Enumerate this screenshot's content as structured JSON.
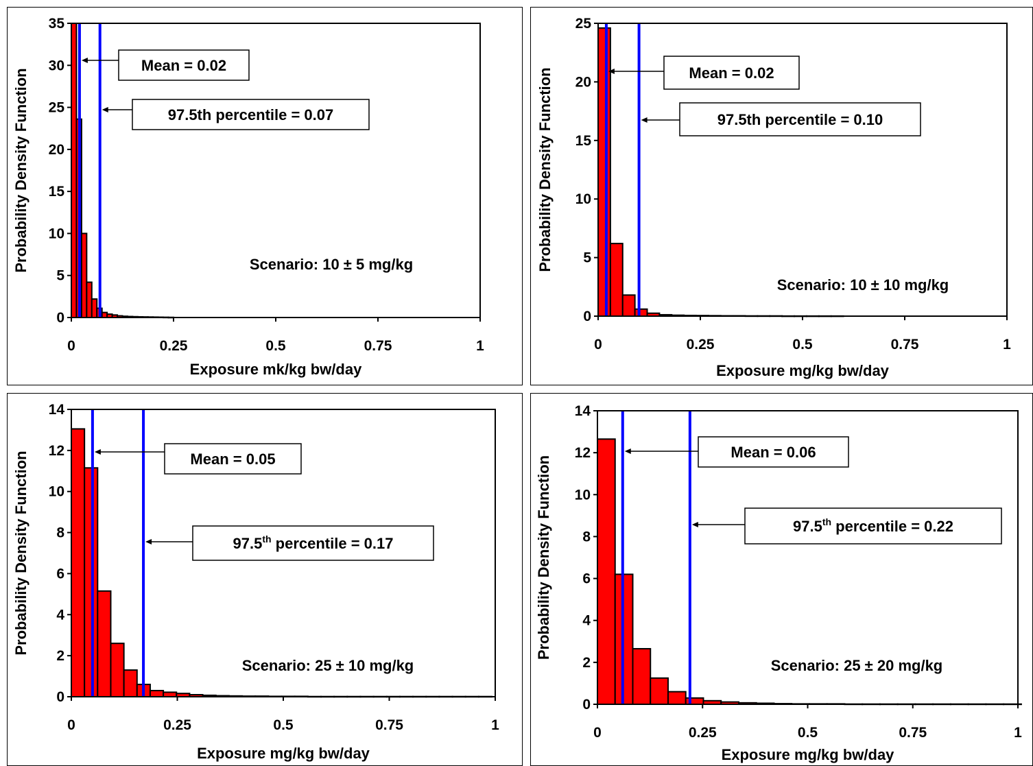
{
  "chart_data": [
    {
      "type": "bar",
      "xlabel": "Exposure mk/kg bw/day",
      "ylabel": "Probability Density Function",
      "xlim": [
        0,
        1
      ],
      "ylim": [
        0,
        35
      ],
      "x_ticks": [
        "0",
        "0.25",
        "0.5",
        "0.75",
        "1"
      ],
      "y_ticks": [
        "0",
        "5",
        "10",
        "15",
        "20",
        "25",
        "30",
        "35"
      ],
      "bin_width": 0.0125,
      "bin_start": 0,
      "values": [
        35,
        23.6,
        10,
        4.2,
        2.2,
        1.1,
        0.6,
        0.4,
        0.3,
        0.2,
        0.15,
        0.12,
        0.1,
        0.08,
        0.07,
        0.06,
        0.05,
        0.04,
        0.03,
        0.02
      ],
      "reference_lines": [
        {
          "x": 0.02,
          "label_main": "Mean = 0.02",
          "label_sup": ""
        },
        {
          "x": 0.07,
          "label_main": "97.5th percentile =  0.07",
          "label_sup": ""
        }
      ],
      "annotation": "Scenario: 10 ± 5 mg/kg",
      "colors": {
        "bar": "#ff0000",
        "line": "#0000ff"
      }
    },
    {
      "type": "bar",
      "xlabel": "Exposure mg/kg bw/day",
      "ylabel": "Probability Density Function",
      "xlim": [
        0,
        1
      ],
      "ylim": [
        0,
        25
      ],
      "x_ticks": [
        "0",
        "0.25",
        "0.5",
        "0.75",
        "1"
      ],
      "y_ticks": [
        "0",
        "5",
        "10",
        "15",
        "20",
        "25"
      ],
      "bin_width": 0.03,
      "bin_start": 0,
      "values": [
        24.6,
        6.2,
        1.8,
        0.6,
        0.25,
        0.12,
        0.08,
        0.06,
        0.05,
        0.04,
        0.03,
        0.03,
        0.02,
        0.02,
        0.02,
        0.01,
        0.01,
        0.01,
        0.01,
        0.01
      ],
      "reference_lines": [
        {
          "x": 0.02,
          "label_main": "Mean = 0.02",
          "label_sup": ""
        },
        {
          "x": 0.1,
          "label_main": "97.5th percentile =  0.10",
          "label_sup": ""
        }
      ],
      "annotation": "Scenario: 10 ± 10 mg/kg",
      "colors": {
        "bar": "#ff0000",
        "line": "#0000ff"
      }
    },
    {
      "type": "bar",
      "xlabel": "Exposure mg/kg bw/day",
      "ylabel": "Probability Density Function",
      "xlim": [
        0,
        1
      ],
      "ylim": [
        0,
        14
      ],
      "x_ticks": [
        "0",
        "0.25",
        "0.5",
        "0.75",
        "1"
      ],
      "y_ticks": [
        "0",
        "2",
        "4",
        "6",
        "8",
        "10",
        "12",
        "14"
      ],
      "bin_width": 0.031,
      "bin_start": 0,
      "values": [
        13.05,
        11.15,
        5.15,
        2.6,
        1.3,
        0.6,
        0.3,
        0.22,
        0.16,
        0.1,
        0.07,
        0.05,
        0.04,
        0.03,
        0.03,
        0.02,
        0.02,
        0.02,
        0.01,
        0.01,
        0.01,
        0.01,
        0.01,
        0.01,
        0.01,
        0.01,
        0.01,
        0.01,
        0.01,
        0.01,
        0.01,
        0.01
      ],
      "reference_lines": [
        {
          "x": 0.05,
          "label_main": "Mean = 0.05",
          "label_sup": ""
        },
        {
          "x": 0.17,
          "label_main": "97.5 percentile =  0.17",
          "label_sup": "th"
        }
      ],
      "annotation": "Scenario: 25 ± 10 mg/kg",
      "colors": {
        "bar": "#ff0000",
        "line": "#0000ff"
      }
    },
    {
      "type": "bar",
      "xlabel": "Exposure mg/kg bw/day",
      "ylabel": "Probability Density Function",
      "xlim": [
        0,
        1
      ],
      "ylim": [
        0,
        14
      ],
      "x_ticks": [
        "0",
        "0.25",
        "0.5",
        "0.75",
        "1"
      ],
      "y_ticks": [
        "0",
        "2",
        "4",
        "6",
        "8",
        "10",
        "12",
        "14"
      ],
      "bin_width": 0.042,
      "bin_start": 0,
      "values": [
        12.65,
        6.2,
        2.65,
        1.25,
        0.6,
        0.3,
        0.17,
        0.11,
        0.07,
        0.05,
        0.03,
        0.02,
        0.02,
        0.02,
        0.01,
        0.01,
        0.01,
        0.01,
        0.01,
        0.01,
        0.01,
        0.01,
        0.01,
        0.01
      ],
      "reference_lines": [
        {
          "x": 0.06,
          "label_main": "Mean = 0.06",
          "label_sup": ""
        },
        {
          "x": 0.22,
          "label_main": "97.5 percentile =  0.22",
          "label_sup": "th"
        }
      ],
      "annotation": "Scenario: 25 ± 20 mg/kg",
      "colors": {
        "bar": "#ff0000",
        "line": "#0000ff"
      }
    }
  ]
}
